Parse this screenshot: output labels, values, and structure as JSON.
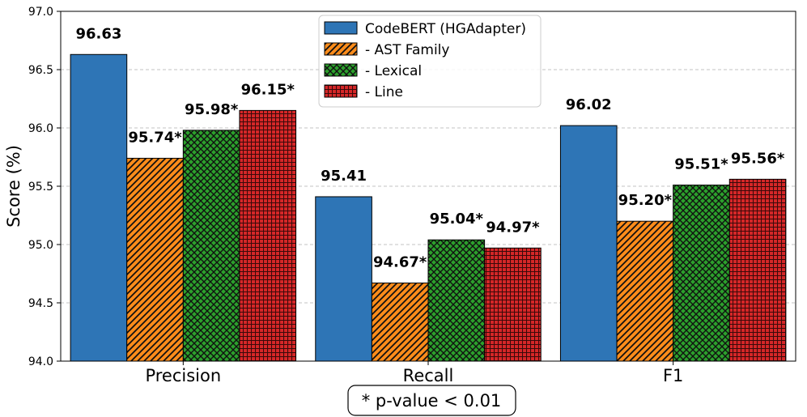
{
  "chart_data": {
    "type": "bar",
    "title": "",
    "xlabel": "",
    "ylabel": "Score (%)",
    "ylim": [
      94.0,
      97.0
    ],
    "yticks": [
      "94.0",
      "94.5",
      "95.0",
      "95.5",
      "96.0",
      "96.5",
      "97.0"
    ],
    "grid": "y-dashed",
    "legend_position": "top-center",
    "categories": [
      "Precision",
      "Recall",
      "F1"
    ],
    "series": [
      {
        "name": "CodeBERT (HGAdapter)",
        "values": [
          96.63,
          95.41,
          96.02
        ],
        "labels": [
          "96.63",
          "95.41",
          "96.02"
        ],
        "color": "#2e75b6",
        "hatch": "none"
      },
      {
        "name": "- AST Family",
        "values": [
          95.74,
          94.67,
          95.2
        ],
        "labels": [
          "95.74*",
          "94.67*",
          "95.20*"
        ],
        "color": "#ff8c1a",
        "hatch": "diagonal"
      },
      {
        "name": "- Lexical",
        "values": [
          95.98,
          95.04,
          95.51
        ],
        "labels": [
          "95.98*",
          "95.04*",
          "95.51*"
        ],
        "color": "#2ca02c",
        "hatch": "crosshatch"
      },
      {
        "name": "- Line",
        "values": [
          96.15,
          94.97,
          95.56
        ],
        "labels": [
          "96.15*",
          "94.97*",
          "95.56*"
        ],
        "color": "#d62728",
        "hatch": "grid"
      }
    ],
    "annotation": "* p-value < 0.01"
  }
}
